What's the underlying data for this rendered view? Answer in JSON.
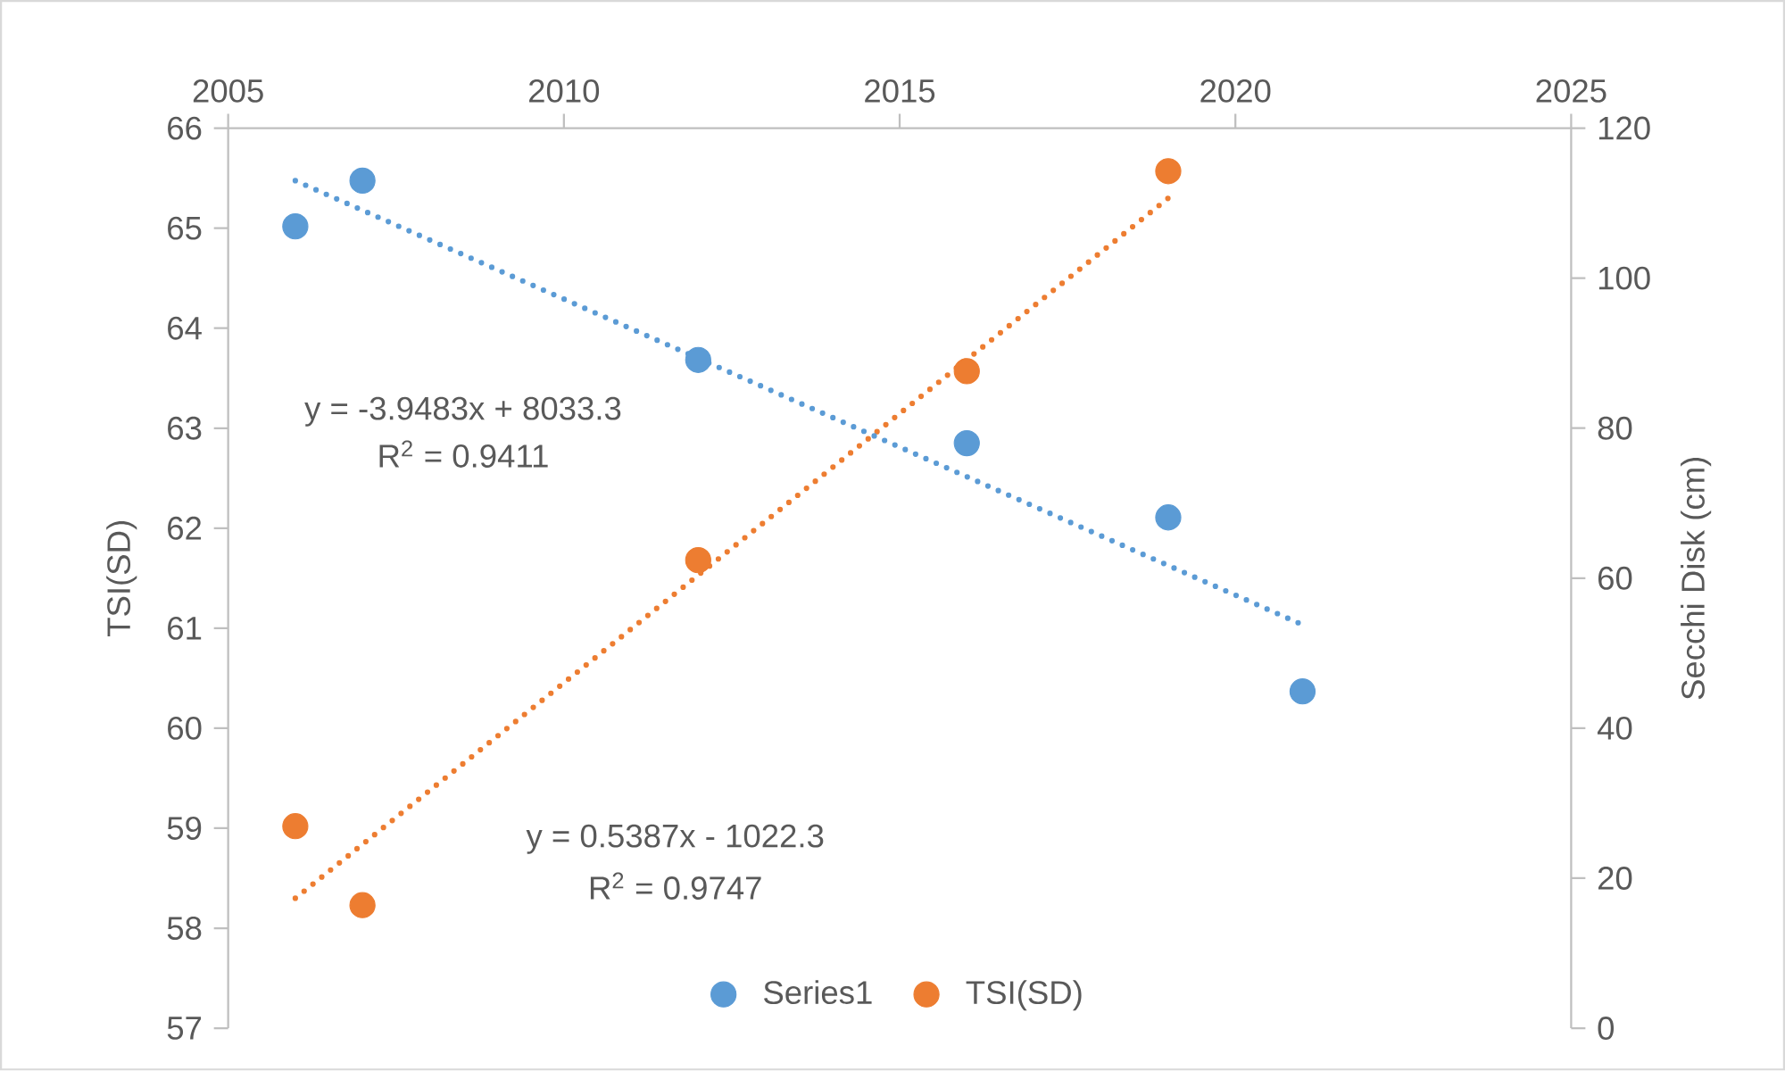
{
  "chart_data": {
    "type": "scatter",
    "xlim": [
      2005,
      2025
    ],
    "xticks": [
      2005,
      2010,
      2015,
      2020,
      2025
    ],
    "ylim": [
      57,
      66
    ],
    "yticks": [
      57,
      58,
      59,
      60,
      61,
      62,
      63,
      64,
      65,
      66
    ],
    "y2lim": [
      0,
      120
    ],
    "y2ticks": [
      0,
      20,
      40,
      60,
      80,
      100,
      120
    ],
    "ylabel": "TSI(SD)",
    "y2label": "Secchi Disk (cm)",
    "legend": "bottom",
    "series": [
      {
        "name": "Series1",
        "color": "#5b9bd5",
        "axis": "y2",
        "marker": "circle",
        "x": [
          2006,
          2007,
          2012,
          2016,
          2019,
          2021
        ],
        "values": [
          106.9,
          113.0,
          89.1,
          78.0,
          68.1,
          44.9
        ]
      },
      {
        "name": "TSI(SD)",
        "color": "#ed7d31",
        "marker": "circle",
        "x": [
          2006,
          2007,
          2012,
          2016,
          2019
        ],
        "values": [
          59.02,
          58.23,
          61.68,
          63.57,
          65.57
        ]
      },
      {
        "type": "line",
        "color": "#5b9bd5",
        "axis": "y2",
        "line_style": "dotted",
        "marker": "none",
        "x": [
          2006,
          2021
        ],
        "values": [
          113.0,
          53.8
        ]
      },
      {
        "type": "line",
        "color": "#ed7d31",
        "line_style": "dotted",
        "marker": "none",
        "x": [
          2006,
          2019
        ],
        "values": [
          58.3,
          65.3
        ]
      }
    ],
    "annotations": [
      "y = -3.9483x + 8033.3",
      "R$^{2}$ = 0.9411",
      "y = 0.5387x - 1022.3",
      "R$^{2}$ = 0.9747"
    ]
  }
}
